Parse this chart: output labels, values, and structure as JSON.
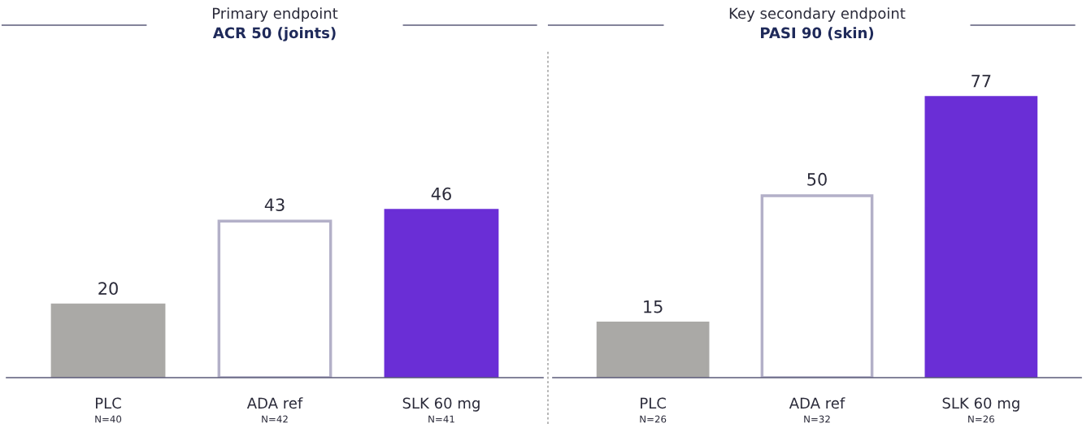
{
  "chart_data": [
    {
      "type": "bar",
      "title": "Primary endpoint",
      "subtitle": "ACR 50 (joints)",
      "categories": [
        "PLC\nN=40",
        "ADA ref\nN=42",
        "SLK 60 mg\nN=41"
      ],
      "values": [
        20,
        43,
        46
      ],
      "colors": [
        "#aaa9a6",
        "#ffffff",
        "#6a2ed6"
      ],
      "ylim": [
        0,
        90
      ],
      "data_labels": true,
      "tick_labels": "x",
      "grid": false,
      "legend": false
    },
    {
      "type": "bar",
      "title": "Key secondary endpoint",
      "subtitle": "PASI 90 (skin)",
      "categories": [
        "PLC\nN=26",
        "ADA ref\nN=32",
        "SLK 60 mg\nN=26"
      ],
      "values": [
        15,
        50,
        77
      ],
      "colors": [
        "#aaa9a6",
        "#ffffff",
        "#6a2ed6"
      ],
      "ylim": [
        0,
        90
      ],
      "data_labels": true,
      "tick_labels": "x",
      "grid": false,
      "legend": false
    }
  ]
}
